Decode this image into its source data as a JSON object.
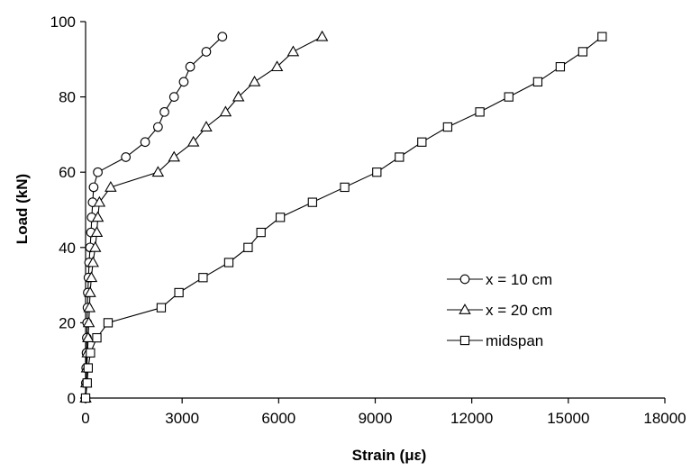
{
  "chart_data": {
    "type": "line",
    "title": "",
    "xlabel": "Strain (με)",
    "ylabel": "Load (kN)",
    "xlim": [
      0,
      18000
    ],
    "ylim": [
      0,
      100
    ],
    "xticks": [
      0,
      3000,
      6000,
      9000,
      12000,
      15000,
      18000
    ],
    "yticks": [
      0,
      20,
      40,
      60,
      80,
      100
    ],
    "grid": false,
    "legend_position": "right",
    "series": [
      {
        "name": "x = 10 cm",
        "marker": "circle",
        "points": [
          [
            0,
            0
          ],
          [
            10,
            4
          ],
          [
            20,
            8
          ],
          [
            30,
            12
          ],
          [
            40,
            16
          ],
          [
            50,
            20
          ],
          [
            60,
            24
          ],
          [
            70,
            28
          ],
          [
            90,
            32
          ],
          [
            110,
            36
          ],
          [
            140,
            40
          ],
          [
            170,
            44
          ],
          [
            190,
            48
          ],
          [
            220,
            52
          ],
          [
            250,
            56
          ],
          [
            380,
            60
          ],
          [
            1250,
            64
          ],
          [
            1850,
            68
          ],
          [
            2250,
            72
          ],
          [
            2450,
            76
          ],
          [
            2750,
            80
          ],
          [
            3050,
            84
          ],
          [
            3250,
            88
          ],
          [
            3750,
            92
          ],
          [
            4250,
            96
          ]
        ]
      },
      {
        "name": "x = 20 cm",
        "marker": "triangle",
        "points": [
          [
            0,
            0
          ],
          [
            20,
            4
          ],
          [
            40,
            8
          ],
          [
            60,
            12
          ],
          [
            80,
            16
          ],
          [
            100,
            20
          ],
          [
            120,
            24
          ],
          [
            140,
            28
          ],
          [
            180,
            32
          ],
          [
            230,
            36
          ],
          [
            300,
            40
          ],
          [
            350,
            44
          ],
          [
            380,
            48
          ],
          [
            430,
            52
          ],
          [
            780,
            56
          ],
          [
            2250,
            60
          ],
          [
            2750,
            64
          ],
          [
            3350,
            68
          ],
          [
            3750,
            72
          ],
          [
            4350,
            76
          ],
          [
            4750,
            80
          ],
          [
            5250,
            84
          ],
          [
            5950,
            88
          ],
          [
            6450,
            92
          ],
          [
            7350,
            96
          ]
        ]
      },
      {
        "name": "midspan",
        "marker": "square",
        "points": [
          [
            0,
            0
          ],
          [
            50,
            4
          ],
          [
            80,
            8
          ],
          [
            150,
            12
          ],
          [
            350,
            16
          ],
          [
            700,
            20
          ],
          [
            2350,
            24
          ],
          [
            2900,
            28
          ],
          [
            3650,
            32
          ],
          [
            4450,
            36
          ],
          [
            5050,
            40
          ],
          [
            5450,
            44
          ],
          [
            6050,
            48
          ],
          [
            7050,
            52
          ],
          [
            8050,
            56
          ],
          [
            9050,
            60
          ],
          [
            9750,
            64
          ],
          [
            10450,
            68
          ],
          [
            11250,
            72
          ],
          [
            12250,
            76
          ],
          [
            13150,
            80
          ],
          [
            14050,
            84
          ],
          [
            14750,
            88
          ],
          [
            15450,
            92
          ],
          [
            16050,
            96
          ]
        ]
      }
    ]
  }
}
